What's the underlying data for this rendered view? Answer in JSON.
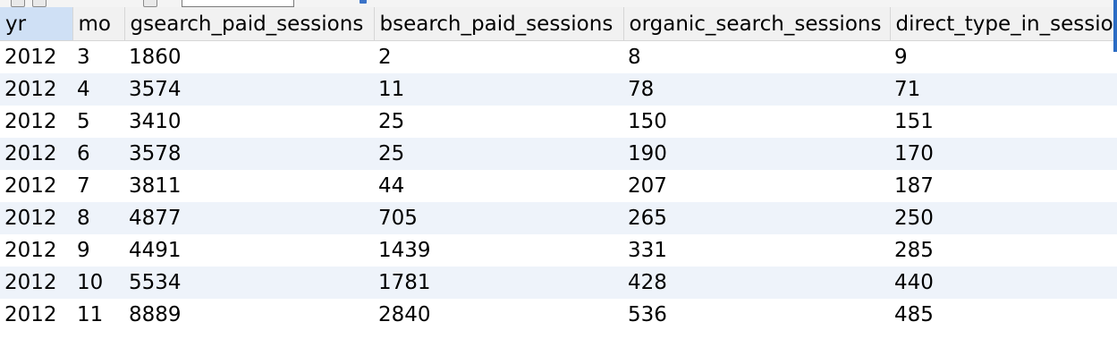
{
  "grid": {
    "columns": [
      "yr",
      "mo",
      "gsearch_paid_sessions",
      "bsearch_paid_sessions",
      "organic_search_sessions",
      "direct_type_in_sessio"
    ],
    "rows": [
      [
        "2012",
        "3",
        "1860",
        "2",
        "8",
        "9"
      ],
      [
        "2012",
        "4",
        "3574",
        "11",
        "78",
        "71"
      ],
      [
        "2012",
        "5",
        "3410",
        "25",
        "150",
        "151"
      ],
      [
        "2012",
        "6",
        "3578",
        "25",
        "190",
        "170"
      ],
      [
        "2012",
        "7",
        "3811",
        "44",
        "207",
        "187"
      ],
      [
        "2012",
        "8",
        "4877",
        "705",
        "265",
        "250"
      ],
      [
        "2012",
        "9",
        "4491",
        "1439",
        "331",
        "285"
      ],
      [
        "2012",
        "10",
        "5534",
        "1781",
        "428",
        "440"
      ],
      [
        "2012",
        "11",
        "8889",
        "2840",
        "536",
        "485"
      ]
    ]
  },
  "colors": {
    "header_bg": "#f1f1f1",
    "selected_header_bg": "#cfe0f5",
    "alt_row_bg": "#eef3fa",
    "accent": "#2b6cc4"
  }
}
